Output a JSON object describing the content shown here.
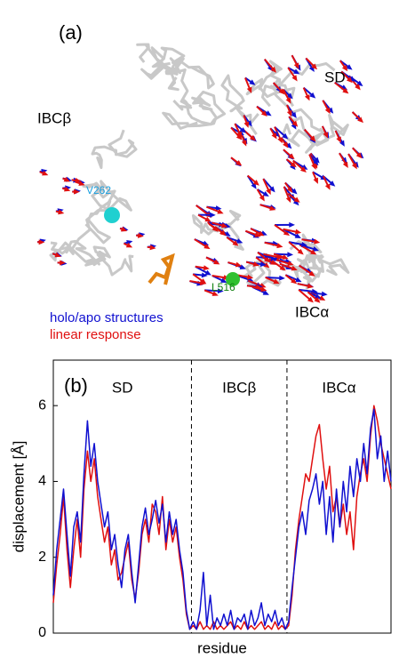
{
  "panel_a": {
    "label": "(a)",
    "domain_labels": [
      "SD",
      "IBCβ",
      "IBCα"
    ],
    "residue_labels": [
      "V262",
      "L516"
    ]
  },
  "chart_data": {
    "type": "line",
    "panel_label": "(b)",
    "x_label": "residue",
    "y_label": "displacement  [Å]",
    "ylim": [
      0,
      7.2
    ],
    "yticks": [
      0,
      2,
      4,
      6
    ],
    "xlim": [
      0,
      99
    ],
    "boundaries": [
      40.5,
      68.5
    ],
    "regions": [
      "SD",
      "IBCβ",
      "IBCα"
    ],
    "series": [
      {
        "name": "holo/apo structures",
        "color": "#1010d0",
        "values": [
          1.0,
          2.2,
          3.0,
          3.8,
          2.6,
          1.5,
          2.8,
          3.2,
          2.4,
          4.2,
          5.6,
          4.4,
          5.0,
          4.0,
          3.4,
          2.8,
          3.2,
          2.2,
          2.6,
          1.8,
          1.2,
          2.2,
          2.6,
          1.6,
          0.8,
          1.8,
          2.8,
          3.3,
          2.6,
          3.0,
          3.5,
          2.9,
          3.4,
          2.4,
          3.2,
          2.6,
          3.0,
          2.2,
          1.6,
          0.6,
          0.1,
          0.3,
          0.1,
          0.6,
          1.6,
          0.2,
          1.0,
          0.1,
          0.4,
          0.2,
          0.5,
          0.2,
          0.6,
          0.1,
          0.4,
          0.3,
          0.5,
          0.1,
          0.6,
          0.2,
          0.4,
          0.8,
          0.2,
          0.5,
          0.3,
          0.6,
          0.2,
          0.4,
          0.1,
          0.3,
          1.2,
          2.0,
          2.8,
          3.2,
          2.6,
          3.5,
          3.8,
          4.2,
          3.4,
          4.0,
          2.6,
          3.6,
          2.4,
          3.8,
          2.8,
          4.0,
          3.2,
          4.4,
          3.6,
          4.6,
          4.0,
          5.0,
          4.2,
          5.4,
          5.9,
          4.6,
          5.2,
          4.0,
          4.8,
          4.0
        ]
      },
      {
        "name": "linear response",
        "color": "#e01010",
        "values": [
          0.8,
          1.8,
          2.6,
          3.6,
          2.2,
          1.2,
          2.2,
          3.0,
          2.0,
          3.8,
          4.8,
          4.0,
          4.6,
          3.6,
          3.0,
          2.4,
          2.8,
          1.8,
          2.2,
          1.4,
          1.6,
          2.0,
          2.4,
          1.4,
          0.9,
          1.6,
          2.6,
          3.0,
          2.4,
          3.4,
          3.2,
          2.6,
          3.6,
          2.2,
          3.0,
          2.4,
          2.8,
          2.0,
          1.4,
          0.5,
          0.1,
          0.2,
          0.1,
          0.3,
          0.1,
          0.2,
          0.1,
          0.3,
          0.1,
          0.2,
          0.1,
          0.2,
          0.3,
          0.1,
          0.2,
          0.1,
          0.3,
          0.1,
          0.2,
          0.1,
          0.2,
          0.3,
          0.1,
          0.2,
          0.1,
          0.3,
          0.1,
          0.2,
          0.1,
          0.2,
          1.0,
          2.2,
          3.0,
          3.6,
          4.2,
          4.0,
          4.6,
          5.2,
          5.5,
          4.6,
          3.8,
          4.4,
          3.2,
          3.6,
          2.8,
          3.4,
          2.6,
          3.2,
          2.2,
          3.6,
          4.2,
          4.6,
          4.0,
          5.2,
          6.0,
          5.6,
          5.0,
          4.6,
          4.2,
          3.8
        ]
      }
    ]
  }
}
